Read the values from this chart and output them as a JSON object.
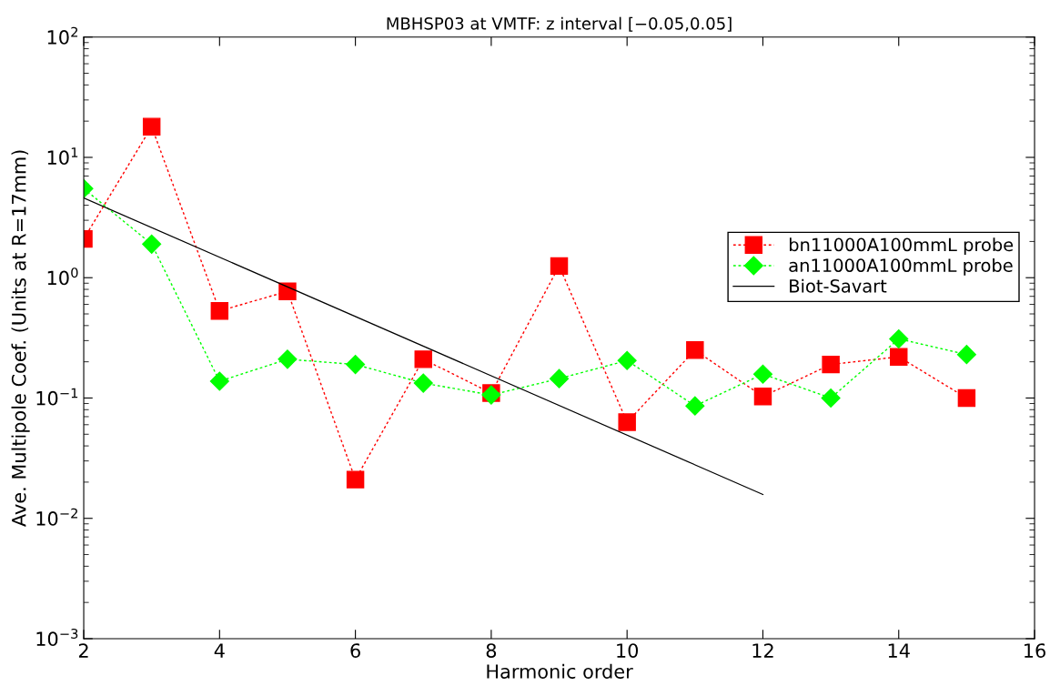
{
  "chart_data": {
    "type": "line",
    "title": "MBHSP03 at VMTF: z interval [−0.05,0.05]",
    "xlabel": "Harmonic order",
    "ylabel": "Ave. Multipole Coef. (Units at R=17mm)",
    "log": "y",
    "grid": false,
    "legend": "top right",
    "xlim": [
      2,
      16
    ],
    "xticks": [
      2,
      4,
      6,
      8,
      10,
      12,
      14,
      16
    ],
    "ylim": [
      0.001,
      100
    ],
    "yticks": [
      {
        "value": 0.001,
        "label": "10$^{−3}$"
      },
      {
        "value": 0.01,
        "label": "10$^{−2}$"
      },
      {
        "value": 0.1,
        "label": "10$^{−1}$"
      },
      {
        "value": 1,
        "label": "10$^{0}$"
      },
      {
        "value": 10,
        "label": "10$^{1}$"
      },
      {
        "value": 100,
        "label": "10$^{2}$"
      }
    ],
    "series": [
      {
        "name": "bn11000A100mmL probe",
        "color": "#ff0000",
        "marker": "square",
        "line_style": "dotted",
        "x": [
          2,
          3,
          4,
          5,
          6,
          7,
          8,
          9,
          10,
          11,
          12,
          13,
          14,
          15
        ],
        "values": [
          2.1,
          18,
          0.53,
          0.77,
          0.021,
          0.21,
          0.11,
          1.25,
          0.063,
          0.25,
          0.103,
          0.19,
          0.22,
          0.1
        ]
      },
      {
        "name": "an11000A100mmL probe",
        "color": "#00ff00",
        "marker": "diamond",
        "line_style": "dotted",
        "x": [
          2,
          3,
          4,
          5,
          6,
          7,
          8,
          9,
          10,
          11,
          12,
          13,
          14,
          15
        ],
        "values": [
          5.5,
          1.9,
          0.138,
          0.21,
          0.19,
          0.133,
          0.106,
          0.145,
          0.205,
          0.086,
          0.158,
          0.1,
          0.31,
          0.23
        ]
      },
      {
        "name": "Biot-Savart",
        "color": "#000000",
        "marker": "none",
        "line_style": "solid",
        "x": [
          2,
          12
        ],
        "values": [
          4.6,
          0.0158
        ]
      }
    ]
  }
}
